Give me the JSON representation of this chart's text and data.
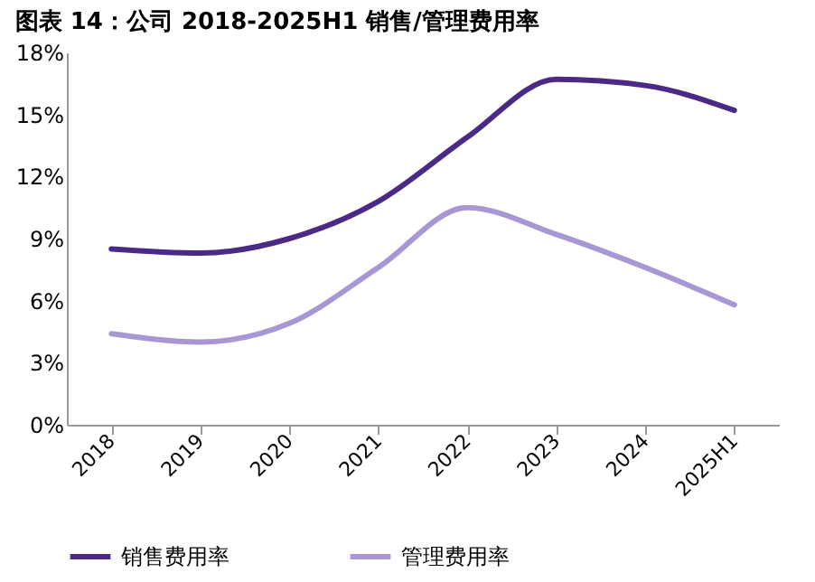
{
  "chart_data": {
    "type": "line",
    "title": "图表 14：公司 2018-2025H1 销售/管理费用率",
    "categories": [
      "2018",
      "2019",
      "2020",
      "2021",
      "2022",
      "2023",
      "2024",
      "2025H1"
    ],
    "series": [
      {
        "name": "销售费用率",
        "color": "#4b2a85",
        "values": [
          8.5,
          8.3,
          9.0,
          10.8,
          13.9,
          16.7,
          16.4,
          15.2
        ]
      },
      {
        "name": "管理费用率",
        "color": "#a897d4",
        "values": [
          4.4,
          4.0,
          4.9,
          7.6,
          10.5,
          9.2,
          7.6,
          5.8
        ]
      }
    ],
    "ylim": [
      0,
      18
    ],
    "yticks": [
      {
        "value": 0,
        "label": "0%"
      },
      {
        "value": 3,
        "label": "3%"
      },
      {
        "value": 6,
        "label": "6%"
      },
      {
        "value": 9,
        "label": "9%"
      },
      {
        "value": 12,
        "label": "12%"
      },
      {
        "value": 15,
        "label": "15%"
      },
      {
        "value": 18,
        "label": "18%"
      }
    ],
    "grid": false,
    "legend": "bottom",
    "marker": "none",
    "line_style": "solid"
  }
}
